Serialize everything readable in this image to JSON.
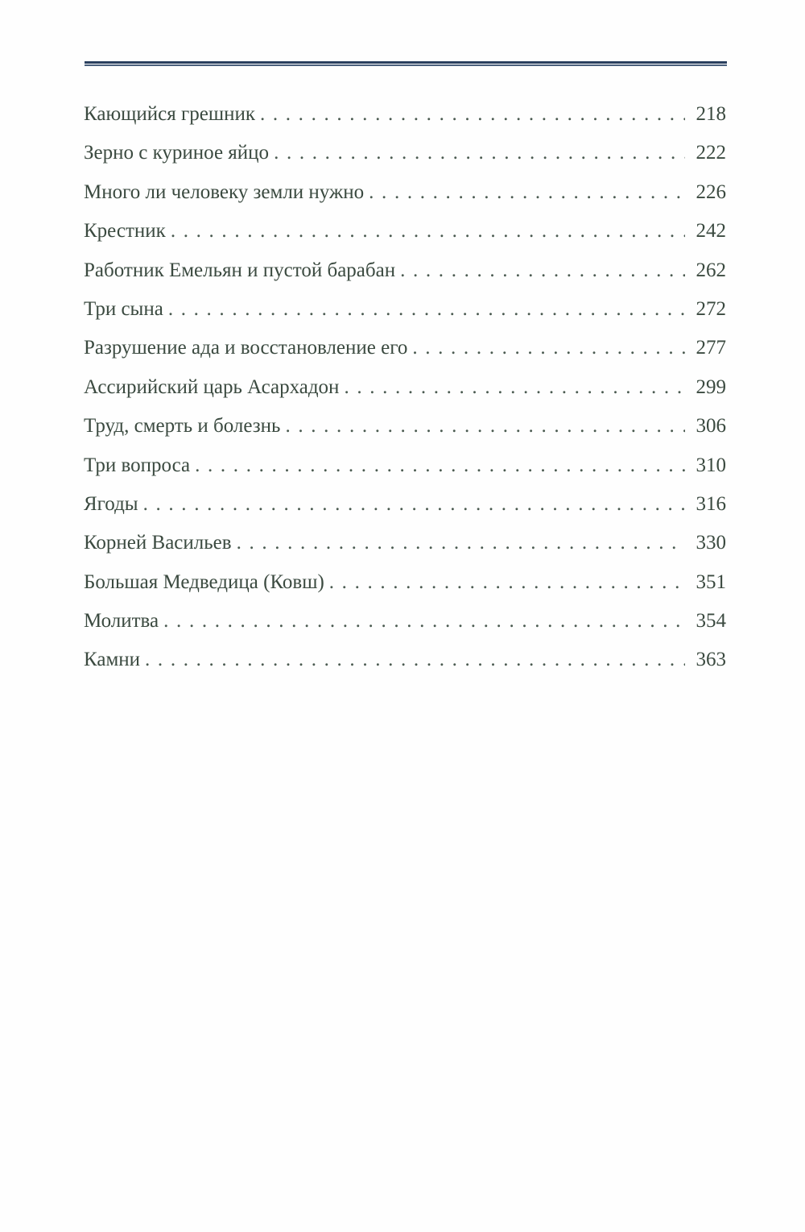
{
  "colors": {
    "rule": "#2a3f5e",
    "text": "#3b4a40"
  },
  "toc": [
    {
      "title": "Кающийся грешник",
      "page": "218"
    },
    {
      "title": "Зерно с куриное яйцо",
      "page": "222"
    },
    {
      "title": "Много ли человеку земли нужно",
      "page": "226"
    },
    {
      "title": "Крестник",
      "page": "242"
    },
    {
      "title": "Работник Емельян и пустой барабан",
      "page": "262"
    },
    {
      "title": "Три сына",
      "page": "272"
    },
    {
      "title": "Разрушение ада и восстановление его",
      "page": "277"
    },
    {
      "title": "Ассирийский царь Асархадон",
      "page": "299"
    },
    {
      "title": "Труд, смерть и болезнь",
      "page": "306"
    },
    {
      "title": "Три вопроса",
      "page": "310"
    },
    {
      "title": "Ягоды",
      "page": "316"
    },
    {
      "title": "Корней Васильев",
      "page": "330"
    },
    {
      "title": "Большая Медведица (Ковш)",
      "page": "351"
    },
    {
      "title": "Молитва",
      "page": "354"
    },
    {
      "title": "Камни",
      "page": "363"
    }
  ]
}
